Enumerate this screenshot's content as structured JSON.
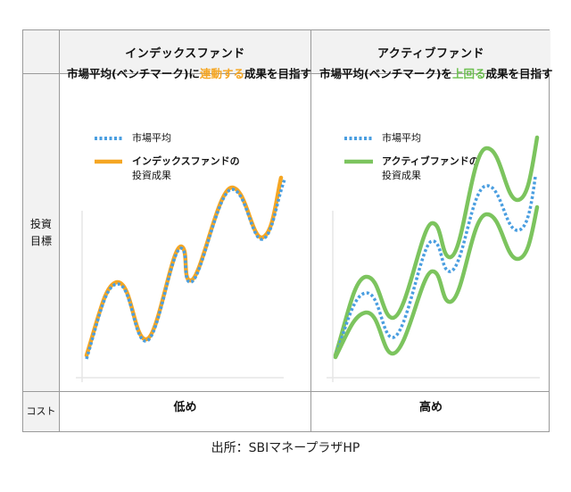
{
  "header": {
    "corner": "",
    "col_index": "インデックスファンド",
    "col_active": "アクティブファンド"
  },
  "rows": {
    "goal_label_line1": "投資",
    "goal_label_line2": "目標",
    "cost_label": "コスト"
  },
  "index_fund": {
    "title_pre": "市場平均(ベンチマーク)に",
    "title_highlight": "連動する",
    "title_post": "成果を目指す",
    "legend_market": "市場平均",
    "legend_fund_line1": "インデックスファンドの",
    "legend_fund_line2": "投資成果",
    "cost": "低め"
  },
  "active_fund": {
    "title_pre": "市場平均(ベンチマーク)を",
    "title_highlight": "上回る",
    "title_post": "成果を目指す",
    "legend_market": "市場平均",
    "legend_fund_line1": "アクティブファンドの",
    "legend_fund_line2": "投資成果",
    "cost": "高め"
  },
  "caption": "出所：SBIマネープラザHP",
  "colors": {
    "market_line": "#4a9ee0",
    "index_line": "#f5a623",
    "active_line": "#7cc45e",
    "highlight_orange": "#f5a623",
    "highlight_green": "#6bbf4e",
    "border": "#9a9a9a",
    "gray_bg": "#f2f2f2"
  }
}
